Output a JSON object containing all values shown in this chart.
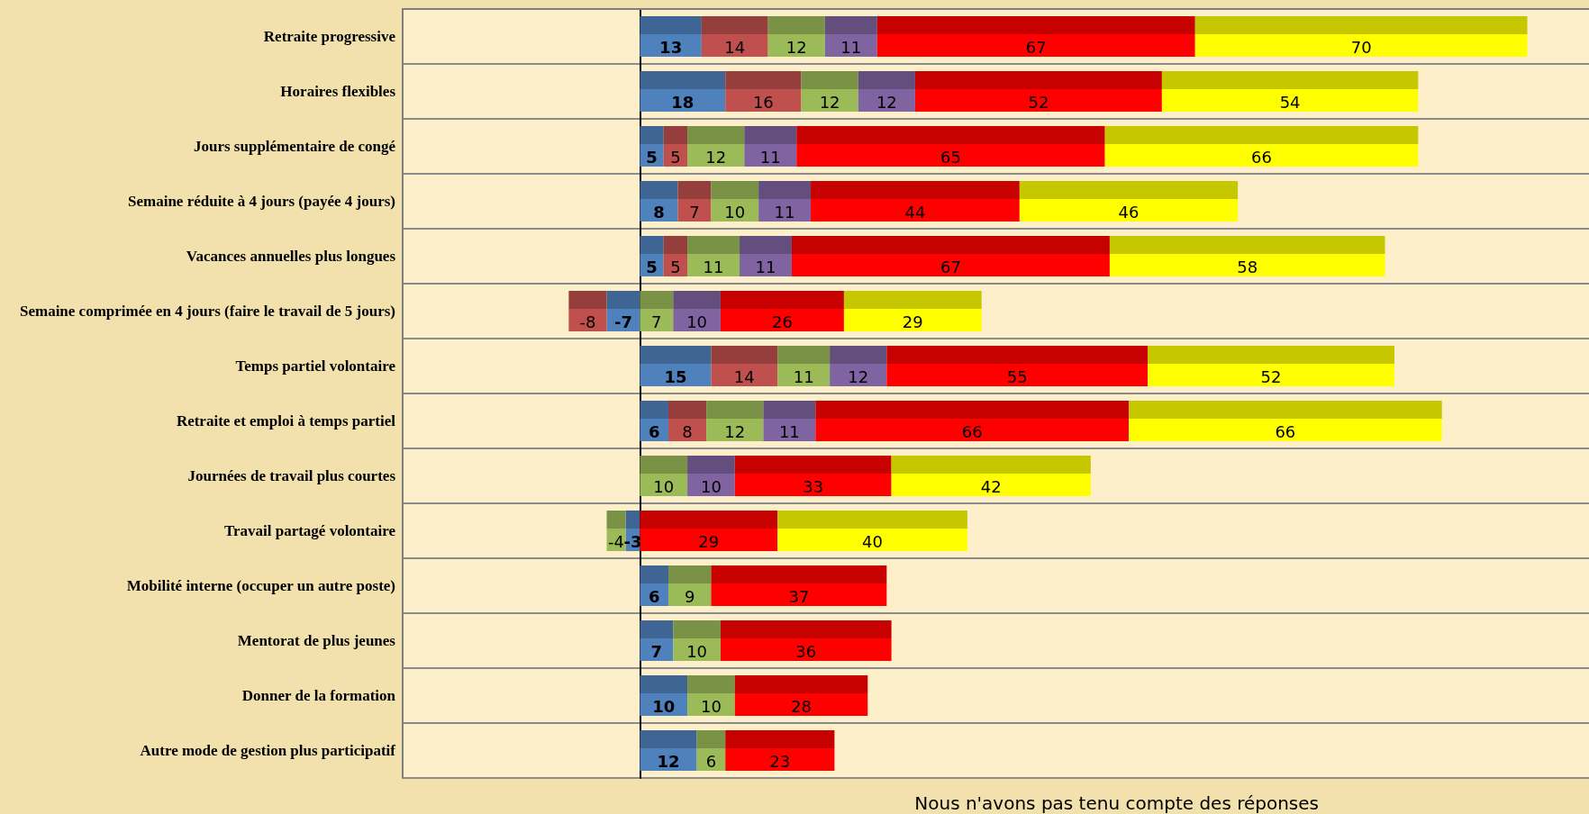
{
  "chart_data": {
    "type": "bar",
    "orientation": "horizontal",
    "stacked": true,
    "data_labels": true,
    "grid": "y",
    "tick_labels": "y",
    "categories": [
      "Retraite progressive",
      "Horaires flexibles",
      "Jours supplémentaire de congé",
      "Semaine réduite à 4 jours (payée 4 jours)",
      "Vacances annuelles plus longues",
      "Semaine comprimée en 4 jours (faire le travail de 5 jours)",
      "Temps partiel volontaire",
      "Retraite et emploi à temps partiel",
      "Journées de travail plus courtes",
      "Travail partagé volontaire",
      "Mobilité interne (occuper un autre poste)",
      "Mentorat de plus jeunes",
      "Donner de la formation",
      "Autre mode de gestion plus participatif"
    ],
    "xlim": [
      -50,
      200
    ],
    "series": [
      {
        "color": "#4f81bd",
        "values": [
          13,
          18,
          5,
          8,
          5,
          -7,
          15,
          6,
          null,
          -3,
          6,
          7,
          10,
          12
        ]
      },
      {
        "color": "#c0504d",
        "values": [
          14,
          16,
          5,
          7,
          5,
          -8,
          14,
          8,
          null,
          null,
          null,
          null,
          null,
          null
        ]
      },
      {
        "color": "#9bbb59",
        "values": [
          12,
          12,
          12,
          10,
          11,
          7,
          11,
          12,
          10,
          -4,
          9,
          10,
          10,
          6
        ]
      },
      {
        "color": "#8064a2",
        "values": [
          11,
          12,
          11,
          11,
          11,
          10,
          12,
          11,
          10,
          null,
          null,
          null,
          null,
          null
        ]
      },
      {
        "color": "#ff0000",
        "values": [
          67,
          52,
          65,
          44,
          67,
          26,
          55,
          66,
          33,
          29,
          37,
          36,
          28,
          23
        ]
      },
      {
        "color": "#ffff00",
        "values": [
          70,
          54,
          66,
          46,
          58,
          29,
          52,
          66,
          42,
          40,
          null,
          null,
          null,
          null
        ]
      }
    ],
    "annotations": [
      "Nous n'avons pas tenu compte des réponses"
    ]
  }
}
